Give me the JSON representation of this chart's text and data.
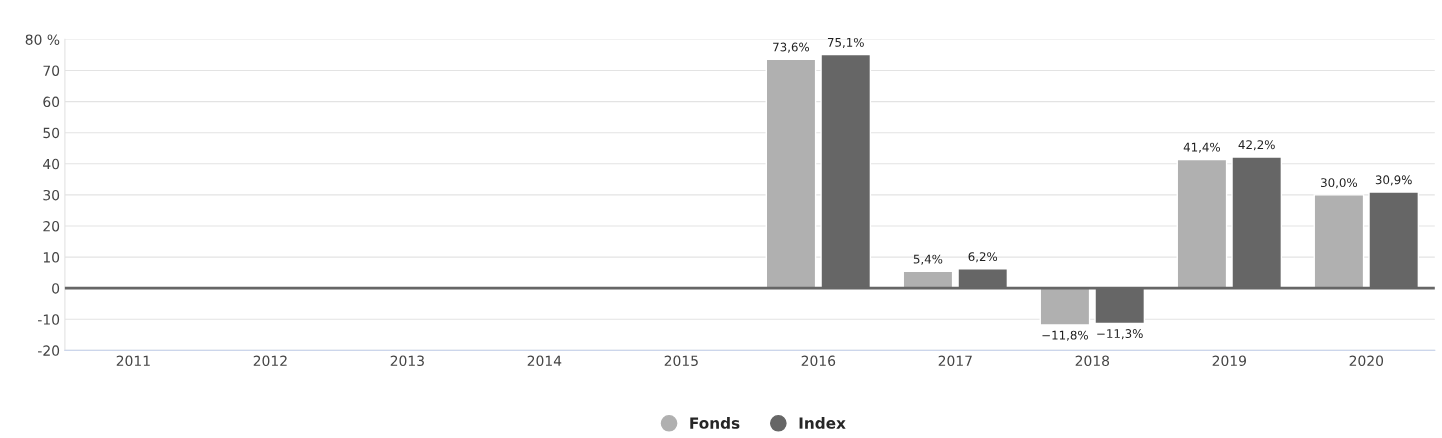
{
  "chart_data": {
    "type": "bar",
    "categories": [
      "2011",
      "2012",
      "2013",
      "2014",
      "2015",
      "2016",
      "2017",
      "2018",
      "2019",
      "2020"
    ],
    "series": [
      {
        "name": "Fonds",
        "color": "#b0b0b0",
        "values": [
          null,
          null,
          null,
          null,
          null,
          73.6,
          5.4,
          -11.8,
          41.4,
          30.0
        ],
        "value_labels": [
          null,
          null,
          null,
          null,
          null,
          "73,6%",
          "5,4%",
          "−11,8%",
          "41,4%",
          "30,0%"
        ]
      },
      {
        "name": "Index",
        "color": "#666666",
        "values": [
          null,
          null,
          null,
          null,
          null,
          75.1,
          6.2,
          -11.3,
          42.2,
          30.9
        ],
        "value_labels": [
          null,
          null,
          null,
          null,
          null,
          "75,1%",
          "6,2%",
          "−11,3%",
          "42,2%",
          "30,9%"
        ]
      }
    ],
    "ylim": [
      -20,
      80
    ],
    "yticks": [
      -20,
      -10,
      0,
      10,
      20,
      30,
      40,
      50,
      60,
      70,
      {
        "value": 80,
        "label": "80 %"
      }
    ],
    "ref_lines": [
      {
        "axis": "y",
        "value": 0,
        "color": "#666666"
      }
    ],
    "grid": "y",
    "legend": "bottom"
  }
}
